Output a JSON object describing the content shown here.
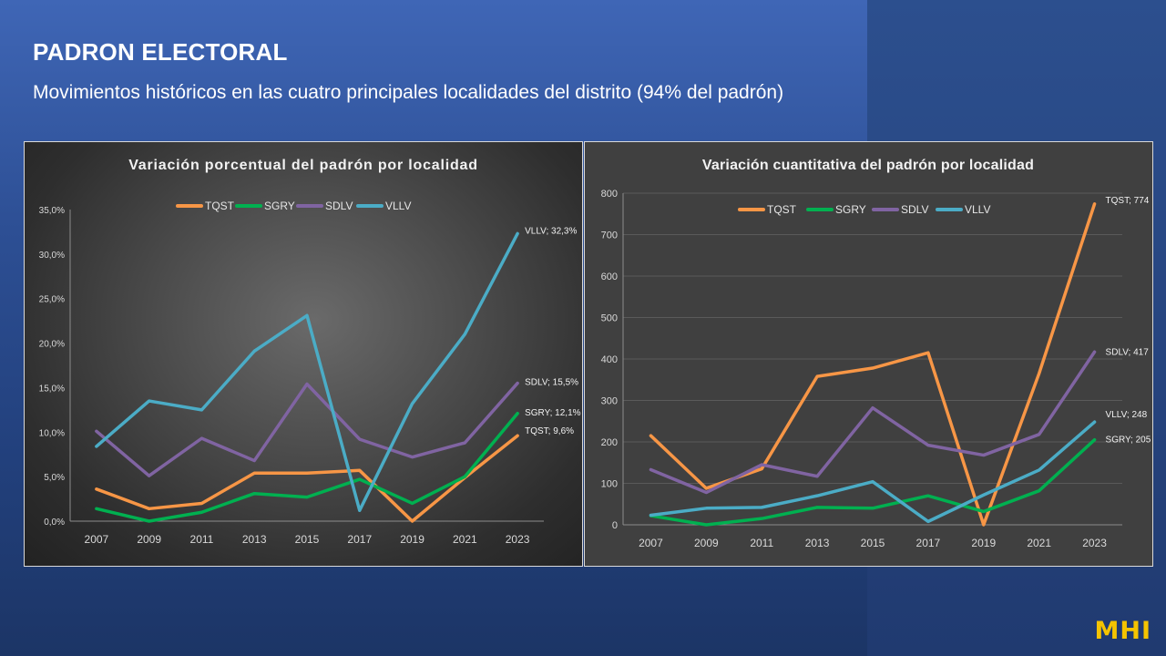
{
  "header": {
    "title": "PADRON ELECTORAL",
    "subtitle": "Movimientos históricos en las cuatro principales localidades del distrito (94% del padrón)"
  },
  "logo": "MHI",
  "colors": {
    "TQST": "#f79646",
    "SGRY": "#00b050",
    "SDLV": "#8064a2",
    "VLLV": "#4bacc6"
  },
  "chart_data": [
    {
      "type": "line",
      "title": "Variación  porcentual  del padrón  por  localidad",
      "x": [
        "2007",
        "2009",
        "2011",
        "2013",
        "2015",
        "2017",
        "2019",
        "2021",
        "2023"
      ],
      "ylim": [
        0,
        35
      ],
      "yticks": [
        "0,0%",
        "5,0%",
        "10,0%",
        "15,0%",
        "20,0%",
        "25,0%",
        "30,0%",
        "35,0%"
      ],
      "ytick_values": [
        0,
        5,
        10,
        15,
        20,
        25,
        30,
        35
      ],
      "legend_position": "top",
      "grid": false,
      "series": [
        {
          "name": "TQST",
          "values": [
            3.6,
            1.4,
            2.0,
            5.4,
            5.4,
            5.7,
            0.0,
            4.9,
            9.6
          ],
          "end_label": "TQST; 9,6%"
        },
        {
          "name": "SGRY",
          "values": [
            1.4,
            0.0,
            1.0,
            3.1,
            2.7,
            4.7,
            2.0,
            5.0,
            12.1
          ],
          "end_label": "SGRY; 12,1%"
        },
        {
          "name": "SDLV",
          "values": [
            10.1,
            5.1,
            9.3,
            6.8,
            15.4,
            9.2,
            7.2,
            8.8,
            15.5
          ],
          "end_label": "SDLV; 15,5%"
        },
        {
          "name": "VLLV",
          "values": [
            8.4,
            13.5,
            12.5,
            19.1,
            23.1,
            1.2,
            13.2,
            21.0,
            32.3
          ],
          "end_label": "VLLV; 32,3%"
        }
      ]
    },
    {
      "type": "line",
      "title": "Variación cuantitativa del padrón por localidad",
      "x": [
        "2007",
        "2009",
        "2011",
        "2013",
        "2015",
        "2017",
        "2019",
        "2021",
        "2023"
      ],
      "ylim": [
        0,
        800
      ],
      "yticks": [
        "0",
        "100",
        "200",
        "300",
        "400",
        "500",
        "600",
        "700",
        "800"
      ],
      "ytick_values": [
        0,
        100,
        200,
        300,
        400,
        500,
        600,
        700,
        800
      ],
      "legend_position": "top",
      "grid": true,
      "series": [
        {
          "name": "TQST",
          "values": [
            215,
            88,
            135,
            358,
            378,
            415,
            0,
            365,
            774
          ],
          "end_label": "TQST; 774"
        },
        {
          "name": "SGRY",
          "values": [
            22,
            0,
            15,
            42,
            40,
            70,
            32,
            82,
            205
          ],
          "end_label": "SGRY; 205"
        },
        {
          "name": "SDLV",
          "values": [
            133,
            78,
            145,
            117,
            282,
            192,
            168,
            218,
            417
          ],
          "end_label": "SDLV; 417"
        },
        {
          "name": "VLLV",
          "values": [
            23,
            40,
            42,
            70,
            104,
            8,
            72,
            132,
            248
          ],
          "end_label": "VLLV; 248"
        }
      ]
    }
  ]
}
